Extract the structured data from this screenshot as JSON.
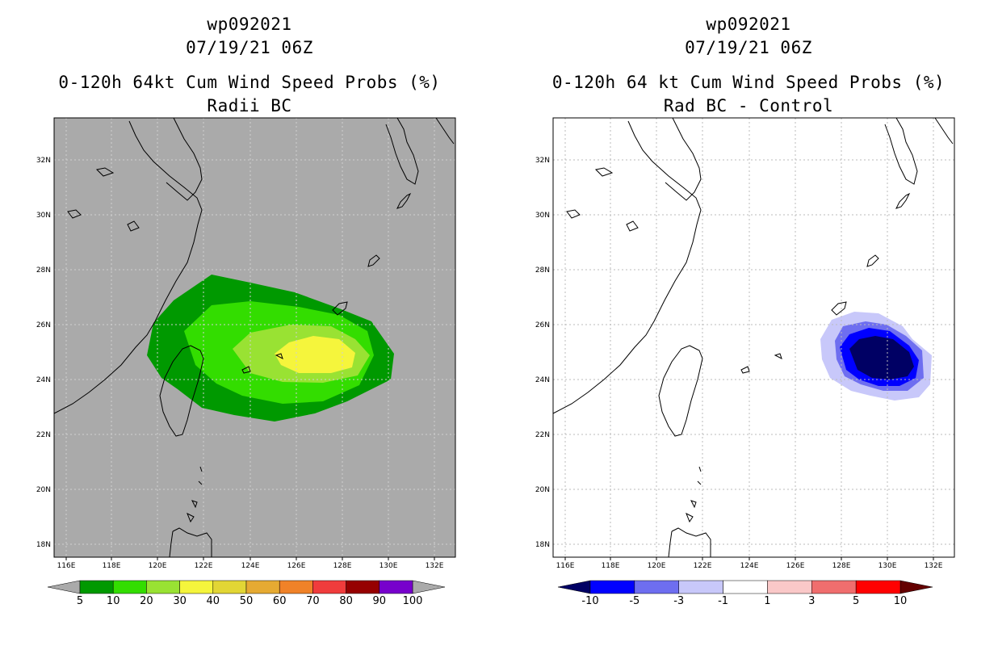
{
  "panels": [
    {
      "title_line1": "wp092021",
      "title_line2": "07/19/21 06Z",
      "title_line3": "0-120h 64kt Cum Wind Speed Probs (%)",
      "title_line4": "Radii BC",
      "colorbar": {
        "labels": [
          "5",
          "10",
          "20",
          "30",
          "40",
          "50",
          "60",
          "70",
          "80",
          "90",
          "100"
        ],
        "colors": [
          "#009900",
          "#33dd00",
          "#99e233",
          "#f5f53c",
          "#e2d635",
          "#e6aa32",
          "#f08228",
          "#f03c3c",
          "#960000",
          "#7700cc"
        ],
        "under_color": "#aaaaaa",
        "over_color": "#aaaaaa"
      }
    },
    {
      "title_line1": "wp092021",
      "title_line2": "07/19/21 06Z",
      "title_line3": "0-120h 64 kt Cum Wind Speed Probs (%)",
      "title_line4": "Rad BC - Control",
      "colorbar": {
        "labels": [
          "-10",
          "-5",
          "-3",
          "-1",
          "1",
          "3",
          "5",
          "10"
        ],
        "colors": [
          "#0000ff",
          "#6e6ef0",
          "#c8c8fa",
          "#ffffff",
          "#fac8c8",
          "#f06e6e",
          "#ff0000"
        ],
        "under_color": "#000064",
        "over_color": "#640000"
      }
    }
  ],
  "lon_labels": [
    "116E",
    "118E",
    "120E",
    "122E",
    "124E",
    "126E",
    "128E",
    "130E",
    "132E"
  ],
  "lat_labels": [
    "32N",
    "30N",
    "28N",
    "26N",
    "24N",
    "22N",
    "20N",
    "18N"
  ],
  "map_colors": {
    "background_left": "#aaaaaa",
    "background_right": "#ffffff",
    "coast": "#000000",
    "grid": "#bbbbbb"
  }
}
